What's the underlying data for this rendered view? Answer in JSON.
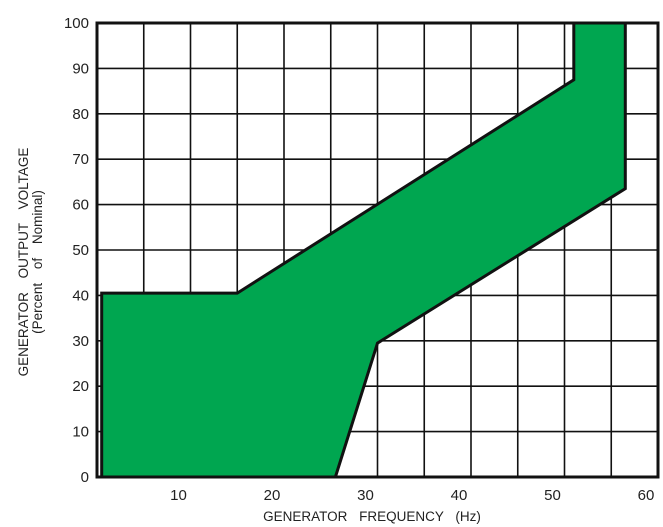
{
  "chart_data": {
    "type": "area",
    "title": "",
    "xlabel": "GENERATOR FREQUENCY (Hz)",
    "ylabel_line1": "GENERATOR OUTPUT VOLTAGE",
    "ylabel_line2": "(Percent of Nominal)",
    "xlim": [
      0,
      60
    ],
    "ylim": [
      0,
      100
    ],
    "x_ticks": [
      10,
      20,
      30,
      40,
      50,
      60
    ],
    "x_tick_labels": [
      "10",
      "20",
      "30",
      "40",
      "50",
      "60"
    ],
    "y_ticks": [
      0,
      10,
      20,
      30,
      40,
      50,
      60,
      70,
      80,
      90,
      100
    ],
    "y_tick_labels": [
      "0",
      "10",
      "20",
      "30",
      "40",
      "50",
      "60",
      "70",
      "80",
      "90",
      "100"
    ],
    "x_grid_step": 5,
    "y_grid_step": 10,
    "grid": true,
    "legend": "none",
    "series": [
      {
        "fill_color": "#00a650",
        "outline_color": "#111111",
        "polygon": [
          [
            0.5,
            0
          ],
          [
            25.5,
            0
          ],
          [
            30,
            29.5
          ],
          [
            56.5,
            63.5
          ],
          [
            56.5,
            100
          ],
          [
            51,
            100
          ],
          [
            51,
            87.5
          ],
          [
            15,
            40.5
          ],
          [
            0.5,
            40.5
          ]
        ]
      }
    ]
  }
}
